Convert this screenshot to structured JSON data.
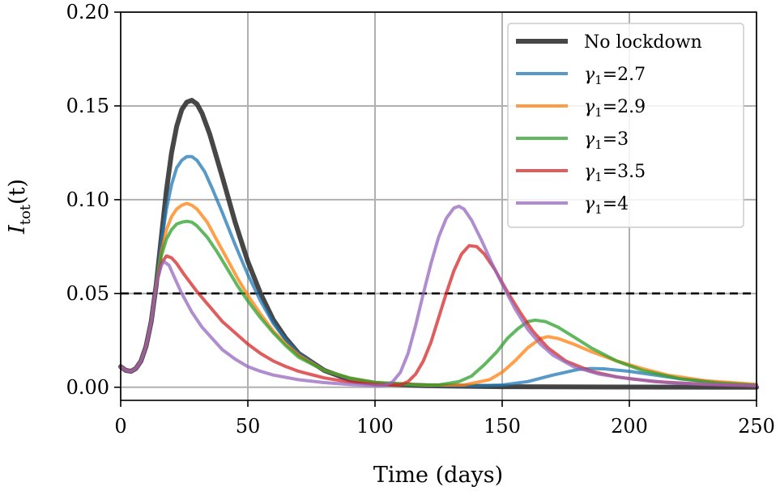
{
  "chart_data": {
    "type": "line",
    "xlabel": "Time (days)",
    "ylabel_base": "I",
    "ylabel_sub": "tot",
    "ylabel_arg": "(t)",
    "xlim": [
      0,
      250
    ],
    "ylim": [
      -0.007,
      0.2
    ],
    "xticks": [
      0,
      50,
      100,
      150,
      200,
      250
    ],
    "xtick_labels": [
      "0",
      "50",
      "100",
      "150",
      "200",
      "250"
    ],
    "yticks": [
      0.0,
      0.05,
      0.1,
      0.15,
      0.2
    ],
    "ytick_labels": [
      "0.00",
      "0.05",
      "0.10",
      "0.15",
      "0.20"
    ],
    "grid": true,
    "threshold": {
      "y": 0.05,
      "style": "dashed",
      "color": "#000000"
    },
    "legend_position": "top-right",
    "series": [
      {
        "name": "No lockdown",
        "color": "#333333",
        "width": "thick",
        "points": [
          [
            0,
            0.011
          ],
          [
            2,
            0.009
          ],
          [
            4,
            0.0085
          ],
          [
            6,
            0.01
          ],
          [
            8,
            0.014
          ],
          [
            10,
            0.022
          ],
          [
            12,
            0.035
          ],
          [
            14,
            0.055
          ],
          [
            16,
            0.08
          ],
          [
            18,
            0.105
          ],
          [
            20,
            0.125
          ],
          [
            22,
            0.139
          ],
          [
            24,
            0.148
          ],
          [
            26,
            0.152
          ],
          [
            28,
            0.153
          ],
          [
            30,
            0.151
          ],
          [
            32,
            0.146
          ],
          [
            35,
            0.135
          ],
          [
            40,
            0.112
          ],
          [
            45,
            0.088
          ],
          [
            50,
            0.067
          ],
          [
            55,
            0.05
          ],
          [
            60,
            0.036
          ],
          [
            65,
            0.026
          ],
          [
            70,
            0.018
          ],
          [
            80,
            0.009
          ],
          [
            90,
            0.004
          ],
          [
            100,
            0.002
          ],
          [
            120,
            0.0008
          ],
          [
            150,
            0.0003
          ],
          [
            200,
            0.0001
          ],
          [
            250,
            0.0
          ]
        ]
      },
      {
        "name": "γ1=2.7",
        "sym": "γ",
        "sub": "1",
        "val": "=2.7",
        "color": "#1f77b4",
        "width": "normal",
        "points": [
          [
            0,
            0.011
          ],
          [
            2,
            0.009
          ],
          [
            4,
            0.0085
          ],
          [
            6,
            0.01
          ],
          [
            8,
            0.014
          ],
          [
            10,
            0.022
          ],
          [
            12,
            0.035
          ],
          [
            14,
            0.055
          ],
          [
            16,
            0.077
          ],
          [
            18,
            0.095
          ],
          [
            20,
            0.108
          ],
          [
            22,
            0.117
          ],
          [
            24,
            0.121
          ],
          [
            26,
            0.123
          ],
          [
            28,
            0.123
          ],
          [
            30,
            0.121
          ],
          [
            33,
            0.115
          ],
          [
            36,
            0.106
          ],
          [
            40,
            0.093
          ],
          [
            45,
            0.076
          ],
          [
            50,
            0.06
          ],
          [
            55,
            0.046
          ],
          [
            60,
            0.034
          ],
          [
            65,
            0.025
          ],
          [
            70,
            0.018
          ],
          [
            80,
            0.009
          ],
          [
            90,
            0.0045
          ],
          [
            100,
            0.0022
          ],
          [
            120,
            0.0009
          ],
          [
            140,
            0.0008
          ],
          [
            150,
            0.0012
          ],
          [
            160,
            0.003
          ],
          [
            170,
            0.0065
          ],
          [
            180,
            0.0095
          ],
          [
            185,
            0.01
          ],
          [
            190,
            0.0098
          ],
          [
            200,
            0.0085
          ],
          [
            210,
            0.0065
          ],
          [
            220,
            0.0045
          ],
          [
            235,
            0.0025
          ],
          [
            250,
            0.0012
          ]
        ]
      },
      {
        "name": "γ1=2.9",
        "sym": "γ",
        "sub": "1",
        "val": "=2.9",
        "color": "#ff7f0e",
        "width": "normal",
        "points": [
          [
            0,
            0.011
          ],
          [
            2,
            0.009
          ],
          [
            4,
            0.0085
          ],
          [
            6,
            0.01
          ],
          [
            8,
            0.014
          ],
          [
            10,
            0.022
          ],
          [
            12,
            0.035
          ],
          [
            14,
            0.055
          ],
          [
            16,
            0.072
          ],
          [
            18,
            0.084
          ],
          [
            20,
            0.091
          ],
          [
            22,
            0.095
          ],
          [
            24,
            0.097
          ],
          [
            26,
            0.098
          ],
          [
            28,
            0.097
          ],
          [
            30,
            0.095
          ],
          [
            34,
            0.088
          ],
          [
            38,
            0.078
          ],
          [
            42,
            0.068
          ],
          [
            46,
            0.058
          ],
          [
            50,
            0.049
          ],
          [
            55,
            0.039
          ],
          [
            60,
            0.03
          ],
          [
            65,
            0.023
          ],
          [
            70,
            0.017
          ],
          [
            80,
            0.009
          ],
          [
            90,
            0.0048
          ],
          [
            100,
            0.0025
          ],
          [
            120,
            0.001
          ],
          [
            135,
            0.0012
          ],
          [
            145,
            0.004
          ],
          [
            150,
            0.008
          ],
          [
            155,
            0.014
          ],
          [
            160,
            0.021
          ],
          [
            165,
            0.026
          ],
          [
            168,
            0.027
          ],
          [
            172,
            0.026
          ],
          [
            178,
            0.023
          ],
          [
            185,
            0.019
          ],
          [
            195,
            0.014
          ],
          [
            205,
            0.01
          ],
          [
            215,
            0.0065
          ],
          [
            230,
            0.0035
          ],
          [
            250,
            0.0015
          ]
        ]
      },
      {
        "name": "γ1=3",
        "sym": "γ",
        "sub": "1",
        "val": "=3",
        "color": "#2ca02c",
        "width": "normal",
        "points": [
          [
            0,
            0.011
          ],
          [
            2,
            0.009
          ],
          [
            4,
            0.0085
          ],
          [
            6,
            0.01
          ],
          [
            8,
            0.014
          ],
          [
            10,
            0.022
          ],
          [
            12,
            0.035
          ],
          [
            14,
            0.055
          ],
          [
            16,
            0.07
          ],
          [
            18,
            0.079
          ],
          [
            20,
            0.084
          ],
          [
            22,
            0.087
          ],
          [
            24,
            0.088
          ],
          [
            26,
            0.0885
          ],
          [
            28,
            0.088
          ],
          [
            30,
            0.086
          ],
          [
            34,
            0.08
          ],
          [
            38,
            0.072
          ],
          [
            42,
            0.063
          ],
          [
            46,
            0.054
          ],
          [
            50,
            0.046
          ],
          [
            55,
            0.037
          ],
          [
            60,
            0.029
          ],
          [
            65,
            0.022
          ],
          [
            70,
            0.016
          ],
          [
            80,
            0.009
          ],
          [
            90,
            0.005
          ],
          [
            100,
            0.0026
          ],
          [
            115,
            0.0013
          ],
          [
            125,
            0.0012
          ],
          [
            133,
            0.003
          ],
          [
            138,
            0.006
          ],
          [
            143,
            0.012
          ],
          [
            148,
            0.019
          ],
          [
            152,
            0.026
          ],
          [
            156,
            0.031
          ],
          [
            160,
            0.035
          ],
          [
            163,
            0.0358
          ],
          [
            167,
            0.035
          ],
          [
            172,
            0.032
          ],
          [
            178,
            0.027
          ],
          [
            185,
            0.021
          ],
          [
            195,
            0.014
          ],
          [
            205,
            0.009
          ],
          [
            220,
            0.0045
          ],
          [
            235,
            0.0022
          ],
          [
            250,
            0.001
          ]
        ]
      },
      {
        "name": "γ1=3.5",
        "sym": "γ",
        "sub": "1",
        "val": "=3.5",
        "color": "#d62728",
        "width": "normal",
        "points": [
          [
            0,
            0.011
          ],
          [
            2,
            0.009
          ],
          [
            4,
            0.0085
          ],
          [
            6,
            0.01
          ],
          [
            8,
            0.014
          ],
          [
            10,
            0.022
          ],
          [
            12,
            0.035
          ],
          [
            14,
            0.055
          ],
          [
            16,
            0.066
          ],
          [
            18,
            0.07
          ],
          [
            20,
            0.069
          ],
          [
            22,
            0.066
          ],
          [
            25,
            0.06
          ],
          [
            30,
            0.051
          ],
          [
            35,
            0.043
          ],
          [
            40,
            0.035
          ],
          [
            45,
            0.029
          ],
          [
            50,
            0.023
          ],
          [
            55,
            0.018
          ],
          [
            60,
            0.014
          ],
          [
            65,
            0.011
          ],
          [
            70,
            0.0085
          ],
          [
            80,
            0.005
          ],
          [
            90,
            0.0028
          ],
          [
            100,
            0.0015
          ],
          [
            105,
            0.0012
          ],
          [
            110,
            0.0012
          ],
          [
            113,
            0.003
          ],
          [
            116,
            0.007
          ],
          [
            119,
            0.014
          ],
          [
            122,
            0.024
          ],
          [
            125,
            0.037
          ],
          [
            128,
            0.05
          ],
          [
            131,
            0.062
          ],
          [
            134,
            0.071
          ],
          [
            137,
            0.0755
          ],
          [
            140,
            0.075
          ],
          [
            143,
            0.071
          ],
          [
            147,
            0.063
          ],
          [
            152,
            0.051
          ],
          [
            157,
            0.04
          ],
          [
            162,
            0.03
          ],
          [
            168,
            0.021
          ],
          [
            175,
            0.014
          ],
          [
            185,
            0.0085
          ],
          [
            195,
            0.0055
          ],
          [
            210,
            0.003
          ],
          [
            230,
            0.0015
          ],
          [
            250,
            0.0007
          ]
        ]
      },
      {
        "name": "γ1=4",
        "sym": "γ",
        "sub": "1",
        "val": "=4",
        "color": "#9467bd",
        "width": "normal",
        "points": [
          [
            0,
            0.011
          ],
          [
            2,
            0.009
          ],
          [
            4,
            0.0085
          ],
          [
            6,
            0.01
          ],
          [
            8,
            0.014
          ],
          [
            10,
            0.022
          ],
          [
            12,
            0.035
          ],
          [
            14,
            0.055
          ],
          [
            16,
            0.065
          ],
          [
            17,
            0.067
          ],
          [
            19,
            0.065
          ],
          [
            21,
            0.059
          ],
          [
            24,
            0.05
          ],
          [
            28,
            0.04
          ],
          [
            32,
            0.032
          ],
          [
            36,
            0.026
          ],
          [
            40,
            0.02
          ],
          [
            45,
            0.015
          ],
          [
            50,
            0.011
          ],
          [
            55,
            0.0085
          ],
          [
            60,
            0.0065
          ],
          [
            70,
            0.004
          ],
          [
            80,
            0.0025
          ],
          [
            90,
            0.0015
          ],
          [
            100,
            0.0008
          ],
          [
            104,
            0.001
          ],
          [
            107,
            0.003
          ],
          [
            110,
            0.008
          ],
          [
            113,
            0.018
          ],
          [
            116,
            0.033
          ],
          [
            119,
            0.05
          ],
          [
            122,
            0.066
          ],
          [
            125,
            0.08
          ],
          [
            128,
            0.09
          ],
          [
            131,
            0.0955
          ],
          [
            133,
            0.0965
          ],
          [
            135,
            0.095
          ],
          [
            138,
            0.089
          ],
          [
            142,
            0.078
          ],
          [
            146,
            0.066
          ],
          [
            150,
            0.055
          ],
          [
            155,
            0.042
          ],
          [
            160,
            0.031
          ],
          [
            165,
            0.023
          ],
          [
            170,
            0.017
          ],
          [
            178,
            0.011
          ],
          [
            188,
            0.007
          ],
          [
            200,
            0.0045
          ],
          [
            215,
            0.0025
          ],
          [
            230,
            0.0015
          ],
          [
            250,
            0.0008
          ]
        ]
      }
    ]
  }
}
